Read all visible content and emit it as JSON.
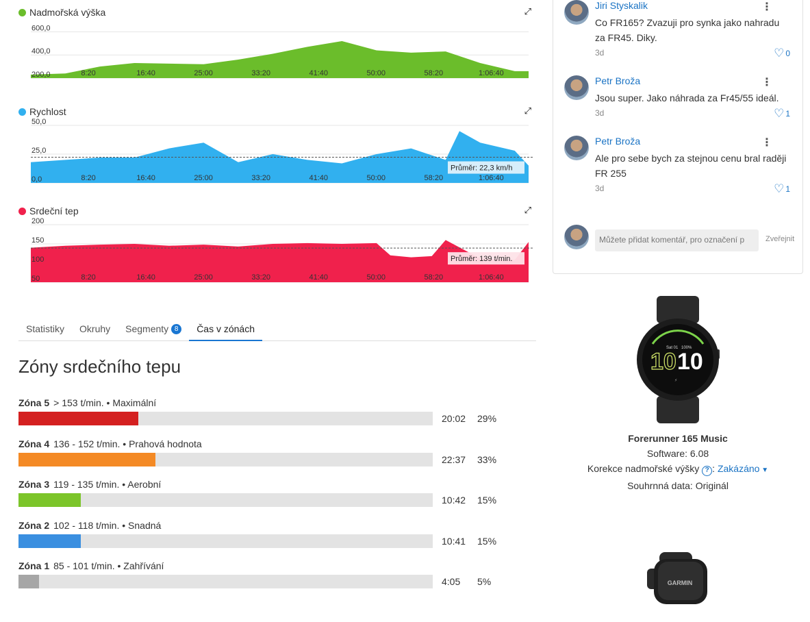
{
  "charts": [
    {
      "title": "Nadmořská výška",
      "color": "#6bbd2b",
      "yticks": [
        "600,0",
        "400,0",
        "200,0"
      ],
      "ytick_values": [
        600,
        400,
        200
      ],
      "xticks": [
        "8:20",
        "16:40",
        "25:00",
        "33:20",
        "41:40",
        "50:00",
        "58:20",
        "1:06:40"
      ],
      "average_label": ""
    },
    {
      "title": "Rychlost",
      "color": "#31b0ef",
      "yticks": [
        "50,0",
        "25,0",
        "0,0"
      ],
      "ytick_values": [
        50,
        25,
        0
      ],
      "xticks": [
        "8:20",
        "16:40",
        "25:00",
        "33:20",
        "41:40",
        "50:00",
        "58:20",
        "1:06:40"
      ],
      "average_label": "Průměr: 22,3 km/h"
    },
    {
      "title": "Srdeční tep",
      "color": "#f0214c",
      "yticks": [
        "200",
        "150",
        "100",
        "50"
      ],
      "ytick_values": [
        200,
        150,
        100,
        50
      ],
      "xticks": [
        "8:20",
        "16:40",
        "25:00",
        "33:20",
        "41:40",
        "50:00",
        "58:20",
        "1:06:40"
      ],
      "average_label": "Průměr: 139 t/min."
    }
  ],
  "chart_data": [
    {
      "type": "area",
      "x": [
        0,
        5,
        10,
        15,
        20,
        25,
        30,
        35,
        40,
        45,
        50,
        55,
        60,
        65,
        70,
        72
      ],
      "values": [
        230,
        240,
        300,
        330,
        325,
        320,
        360,
        410,
        470,
        520,
        440,
        420,
        430,
        330,
        260,
        260
      ],
      "ylim": [
        200,
        650
      ]
    },
    {
      "type": "area",
      "x": [
        0,
        5,
        10,
        15,
        20,
        25,
        30,
        35,
        40,
        45,
        50,
        55,
        60,
        62,
        65,
        70,
        72
      ],
      "values": [
        18,
        20,
        22,
        22,
        30,
        35,
        18,
        25,
        20,
        17,
        25,
        30,
        20,
        45,
        35,
        28,
        15
      ],
      "average": 22.3,
      "ylim": [
        0,
        50
      ]
    },
    {
      "type": "area",
      "x": [
        0,
        5,
        10,
        15,
        20,
        25,
        30,
        35,
        40,
        45,
        50,
        52,
        55,
        58,
        60,
        65,
        70,
        72
      ],
      "values": [
        140,
        145,
        148,
        150,
        145,
        148,
        143,
        150,
        152,
        150,
        152,
        120,
        115,
        118,
        160,
        112,
        108,
        155
      ],
      "average": 139,
      "ylim": [
        50,
        200
      ]
    }
  ],
  "tabs": [
    {
      "label": "Statistiky"
    },
    {
      "label": "Okruhy"
    },
    {
      "label": "Segmenty",
      "badge": "8"
    },
    {
      "label": "Čas v zónách"
    }
  ],
  "zones_title": "Zóny srdečního tepu",
  "zones": [
    {
      "name": "Zóna 5",
      "range": "> 153 t/min. • Maximální",
      "time": "20:02",
      "percent": "29%",
      "fraction": 0.29,
      "color": "#d42020"
    },
    {
      "name": "Zóna 4",
      "range": "136 - 152 t/min. • Prahová hodnota",
      "time": "22:37",
      "percent": "33%",
      "fraction": 0.33,
      "color": "#f48a25"
    },
    {
      "name": "Zóna 3",
      "range": "119 - 135 t/min. • Aerobní",
      "time": "10:42",
      "percent": "15%",
      "fraction": 0.15,
      "color": "#7cc52a"
    },
    {
      "name": "Zóna 2",
      "range": "102 - 118 t/min. • Snadná",
      "time": "10:41",
      "percent": "15%",
      "fraction": 0.15,
      "color": "#3a8fe0"
    },
    {
      "name": "Zóna 1",
      "range": "85 - 101 t/min. • Zahřívání",
      "time": "4:05",
      "percent": "5%",
      "fraction": 0.05,
      "color": "#a6a6a6"
    }
  ],
  "comments": [
    {
      "author": "Jiri Styskalik",
      "text": "Co FR165? Zvazuji pro synka jako nahradu za FR45. Diky.",
      "time": "3d",
      "likes": "0"
    },
    {
      "author": "Petr Broža",
      "text": "Jsou super. Jako náhrada za Fr45/55 ideál.",
      "time": "3d",
      "likes": "1"
    },
    {
      "author": "Petr Broža",
      "text": "Ale pro sebe bych za stejnou cenu bral raději FR 255",
      "time": "3d",
      "likes": "1"
    }
  ],
  "comment_input": {
    "placeholder": "Můžete přidat komentář, pro označení p",
    "publish_label": "Zveřejnit"
  },
  "device": {
    "name": "Forerunner 165 Music",
    "software": "Software: 6.08",
    "elevation_label": "Korekce nadmořské výšky",
    "elevation_value": "Zakázáno",
    "summary": "Souhrnná data: Originál",
    "watch_time_big": "10",
    "watch_time_small": "10",
    "watch_date": "Sat 01",
    "watch_battery": "100%",
    "sensor_brand": "GARMIN"
  }
}
